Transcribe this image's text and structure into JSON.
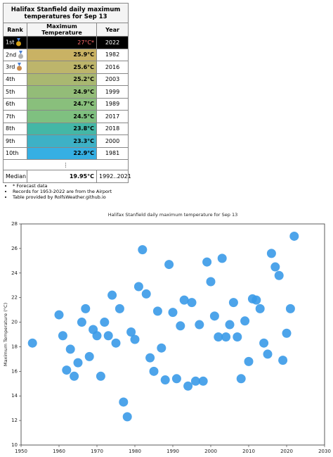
{
  "table": {
    "title": "Halifax Stanfield daily maximum temperatures for Sep 13",
    "header": [
      "Rank",
      "Maximum Temperature",
      "Year"
    ],
    "rows": [
      [
        "1st",
        "27°C*",
        "2022"
      ],
      [
        "2nd",
        "25.9°C",
        "1982"
      ],
      [
        "3rd",
        "25.6°C",
        "2016"
      ],
      [
        "4th",
        "25.2°C",
        "2003"
      ],
      [
        "5th",
        "24.9°C",
        "1999"
      ],
      [
        "6th",
        "24.7°C",
        "1989"
      ],
      [
        "7th",
        "24.5°C",
        "2017"
      ],
      [
        "8th",
        "23.8°C",
        "2018"
      ],
      [
        "9th",
        "23.3°C",
        "2000"
      ],
      [
        "10th",
        "22.9°C",
        "1981"
      ]
    ],
    "ellipsis": "⋮",
    "median": [
      "Median",
      "19.95°C",
      "1992..2021"
    ]
  },
  "notes": [
    "* Forecast data",
    "Records for 1953-2022 are from the Airport",
    "Table provided by RolfsWeather.github.io"
  ],
  "chart_data": {
    "type": "scatter",
    "title": "Halifax Stanfield daily maximum temperature for Sep 13",
    "y_label": "Maximum Temperature (°C)",
    "color": "#3a9ae8",
    "x": [
      1953,
      1960,
      1961,
      1962,
      1963,
      1964,
      1965,
      1966,
      1967,
      1968,
      1969,
      1970,
      1971,
      1972,
      1973,
      1974,
      1975,
      1976,
      1977,
      1978,
      1979,
      1980,
      1981,
      1982,
      1983,
      1984,
      1985,
      1986,
      1987,
      1988,
      1989,
      1990,
      1991,
      1992,
      1993,
      1994,
      1995,
      1996,
      1997,
      1998,
      1999,
      2000,
      2001,
      2002,
      2003,
      2004,
      2005,
      2006,
      2007,
      2008,
      2009,
      2010,
      2011,
      2012,
      2013,
      2014,
      2015,
      2016,
      2017,
      2018,
      2019,
      2020,
      2021,
      2022
    ],
    "y": [
      18.3,
      20.6,
      18.9,
      16.1,
      17.8,
      15.6,
      16.7,
      20.0,
      21.1,
      17.2,
      19.4,
      18.9,
      15.6,
      20.0,
      18.9,
      22.2,
      18.3,
      21.1,
      13.5,
      12.3,
      19.2,
      18.6,
      22.9,
      25.9,
      22.3,
      17.1,
      16.0,
      20.9,
      17.9,
      15.3,
      24.7,
      20.8,
      15.4,
      19.7,
      21.8,
      14.8,
      21.6,
      15.2,
      19.8,
      15.2,
      24.9,
      23.3,
      20.5,
      18.8,
      25.2,
      18.8,
      19.8,
      21.6,
      18.8,
      15.4,
      20.1,
      16.8,
      21.9,
      21.8,
      21.1,
      18.3,
      17.4,
      25.6,
      24.5,
      23.8,
      16.9,
      19.1,
      21.1,
      27.0
    ],
    "xlim": [
      1950,
      2030
    ],
    "xticks": [
      1950,
      1960,
      1970,
      1980,
      1990,
      2000,
      2010,
      2020,
      2030
    ],
    "ylim": [
      10,
      28
    ],
    "yticks": [
      10,
      12,
      14,
      16,
      18,
      20,
      22,
      24,
      26,
      28
    ]
  }
}
